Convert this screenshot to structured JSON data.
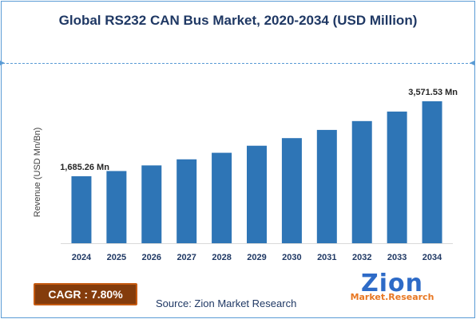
{
  "colors": {
    "bar": "#2e75b6",
    "title": "#1f3864",
    "cagr_bg": "#843c0c",
    "logo_blue": "#2e6bc7",
    "logo_orange": "#e87722"
  },
  "cagr": {
    "label": "CAGR : 7.80%"
  },
  "source": "Source: Zion Market Research",
  "logo": {
    "name": "Zion",
    "subtitle": "Market.Research"
  },
  "chart_data": {
    "type": "bar",
    "title": "Global RS232 CAN Bus Market, 2020-2034 (USD Million)",
    "xlabel": "",
    "ylabel": "Revenue (USD Mn/Bn)",
    "categories": [
      "2024",
      "2025",
      "2026",
      "2027",
      "2028",
      "2029",
      "2030",
      "2031",
      "2032",
      "2033",
      "2034"
    ],
    "values": [
      1685.26,
      1816.71,
      1958.41,
      2111.17,
      2275.84,
      2453.35,
      2644.71,
      2851.0,
      3073.38,
      3313.1,
      3571.53
    ],
    "data_labels": [
      {
        "index": 0,
        "text": "1,685.26 Mn"
      },
      {
        "index": 10,
        "text": "3,571.53 Mn"
      }
    ],
    "ylim": [
      0,
      3571.53
    ],
    "grid": false,
    "legend": "none"
  }
}
